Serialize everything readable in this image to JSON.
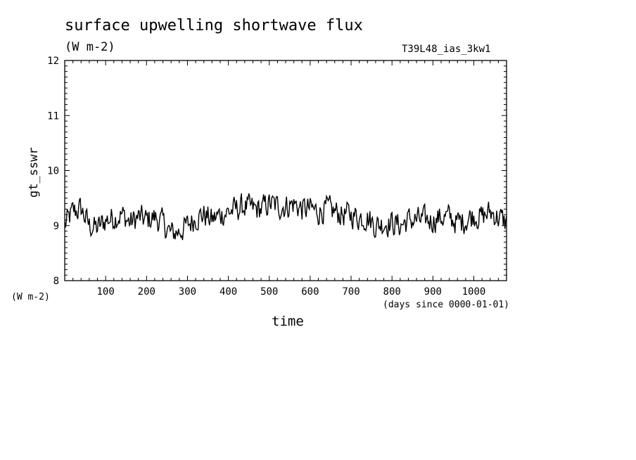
{
  "chart_data": {
    "type": "line",
    "title": "surface upwelling shortwave flux",
    "subtitle": "(W m-2)",
    "run_label": "T39L48_ias_3kw1",
    "xlabel": "time",
    "x_units": "(days since 0000-01-01)",
    "ylabel": "gt_sswr",
    "y_units": "(W m-2)",
    "xlim": [
      0,
      1080
    ],
    "ylim": [
      8,
      12
    ],
    "x_ticks": [
      100,
      200,
      300,
      400,
      500,
      600,
      700,
      800,
      900,
      1000
    ],
    "y_ticks": [
      8,
      9,
      10,
      11,
      12
    ],
    "grid": false,
    "series": [
      {
        "x": [
          0,
          20,
          40,
          60,
          80,
          100,
          120,
          140,
          160,
          180,
          200,
          220,
          240,
          260,
          280,
          300,
          320,
          340,
          360,
          380,
          400,
          420,
          440,
          460,
          480,
          500,
          520,
          540,
          560,
          580,
          600,
          620,
          640,
          660,
          680,
          700,
          720,
          740,
          760,
          780,
          800,
          820,
          840,
          860,
          880,
          900,
          920,
          940,
          960,
          980,
          1000,
          1020,
          1040,
          1060,
          1080
        ],
        "values": [
          9.0,
          9.25,
          9.3,
          9.0,
          8.95,
          9.1,
          9.15,
          9.2,
          9.05,
          9.15,
          9.1,
          9.15,
          9.05,
          8.85,
          8.9,
          9.0,
          9.15,
          9.2,
          9.1,
          9.2,
          9.25,
          9.3,
          9.35,
          9.3,
          9.3,
          9.4,
          9.35,
          9.35,
          9.4,
          9.3,
          9.3,
          9.25,
          9.3,
          9.25,
          9.2,
          9.2,
          9.15,
          9.15,
          9.0,
          9.05,
          9.05,
          9.0,
          9.1,
          9.1,
          9.1,
          9.1,
          9.15,
          9.15,
          9.05,
          9.1,
          9.2,
          9.15,
          9.25,
          9.15,
          9.05
        ]
      }
    ]
  }
}
